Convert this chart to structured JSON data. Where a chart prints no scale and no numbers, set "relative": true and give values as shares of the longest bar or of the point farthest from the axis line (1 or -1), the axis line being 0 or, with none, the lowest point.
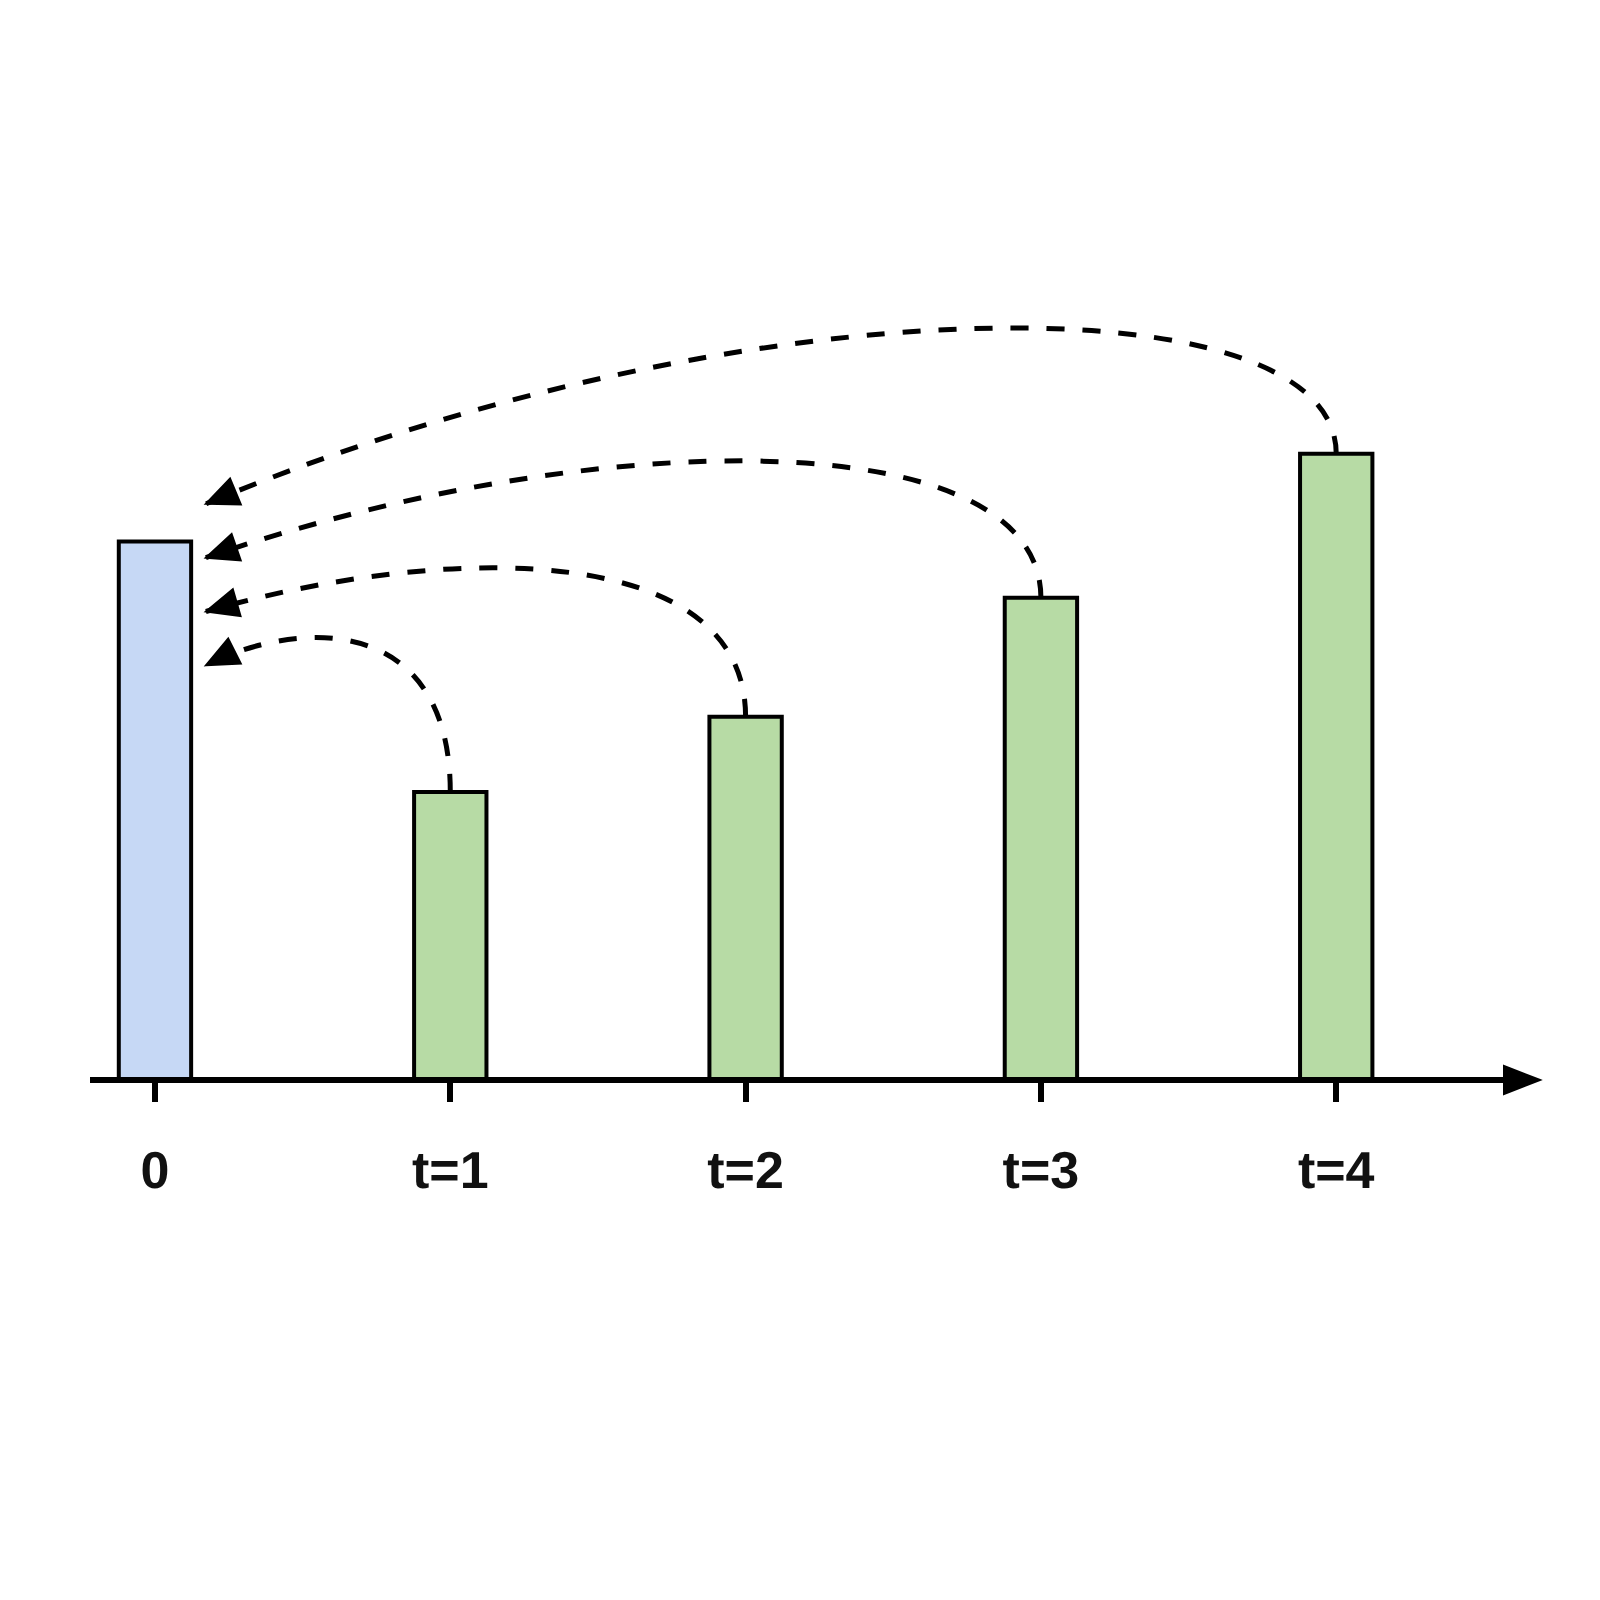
{
  "chart_data": {
    "type": "bar",
    "categories": [
      "0",
      "t=1",
      "t=2",
      "t=3",
      "t=4"
    ],
    "values": [
      0.86,
      0.46,
      0.58,
      0.77,
      1
    ],
    "colors": [
      "#c6d8f5",
      "#b7dba5",
      "#b7dba5",
      "#b7dba5",
      "#b7dba5"
    ],
    "relative": true
  }
}
